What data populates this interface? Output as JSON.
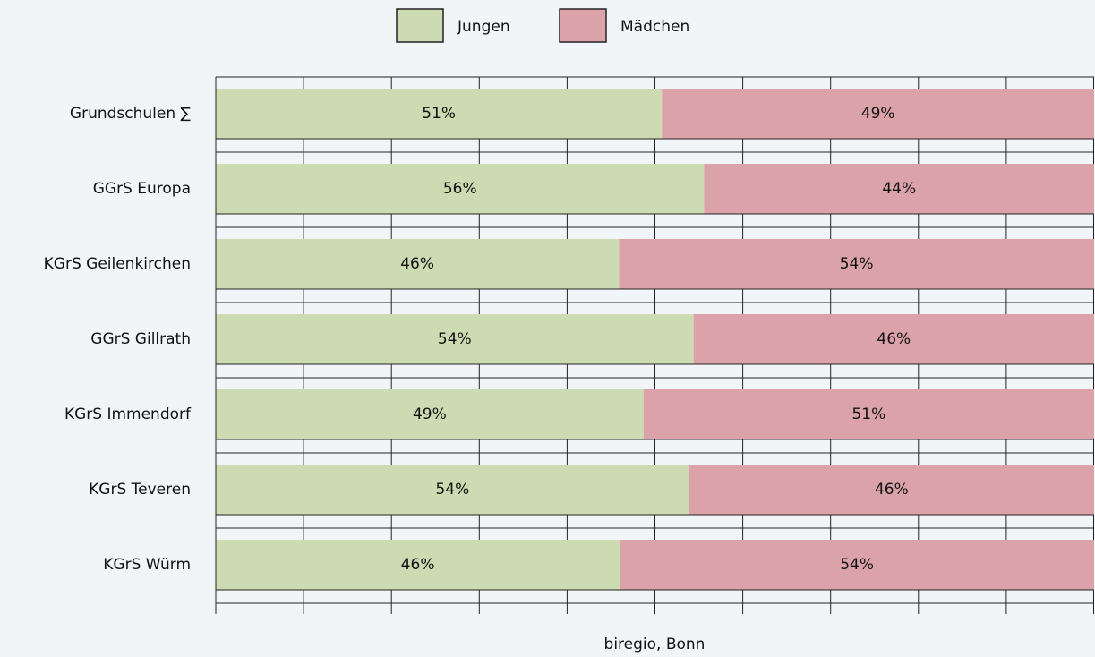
{
  "chart_data": {
    "type": "stacked_bar_horizontal",
    "categories": [
      "Grundschulen ∑",
      "GGrS Europa",
      "KGrS Geilenkirchen",
      "GGrS Gillrath",
      "KGrS Immendorf",
      "KGrS Teveren",
      "KGrS Würm"
    ],
    "series": [
      {
        "name": "Jungen",
        "color": "#cddbb2",
        "values": [
          50.8,
          55.6,
          45.9,
          54.4,
          48.7,
          53.9,
          46.0
        ],
        "value_labels": [
          "51%",
          "56%",
          "46%",
          "54%",
          "49%",
          "54%",
          "46%"
        ]
      },
      {
        "name": "Mädchen",
        "color": "#dba2aa",
        "values": [
          49.2,
          44.4,
          54.1,
          45.6,
          51.3,
          46.1,
          54.0
        ],
        "value_labels": [
          "49%",
          "44%",
          "54%",
          "46%",
          "51%",
          "46%",
          "54%"
        ]
      }
    ],
    "xlim": [
      0,
      100
    ],
    "xticks": [
      0,
      10,
      20,
      30,
      40,
      50,
      60,
      70,
      80,
      90,
      100
    ],
    "source": "biregio, Bonn",
    "grid": true
  }
}
